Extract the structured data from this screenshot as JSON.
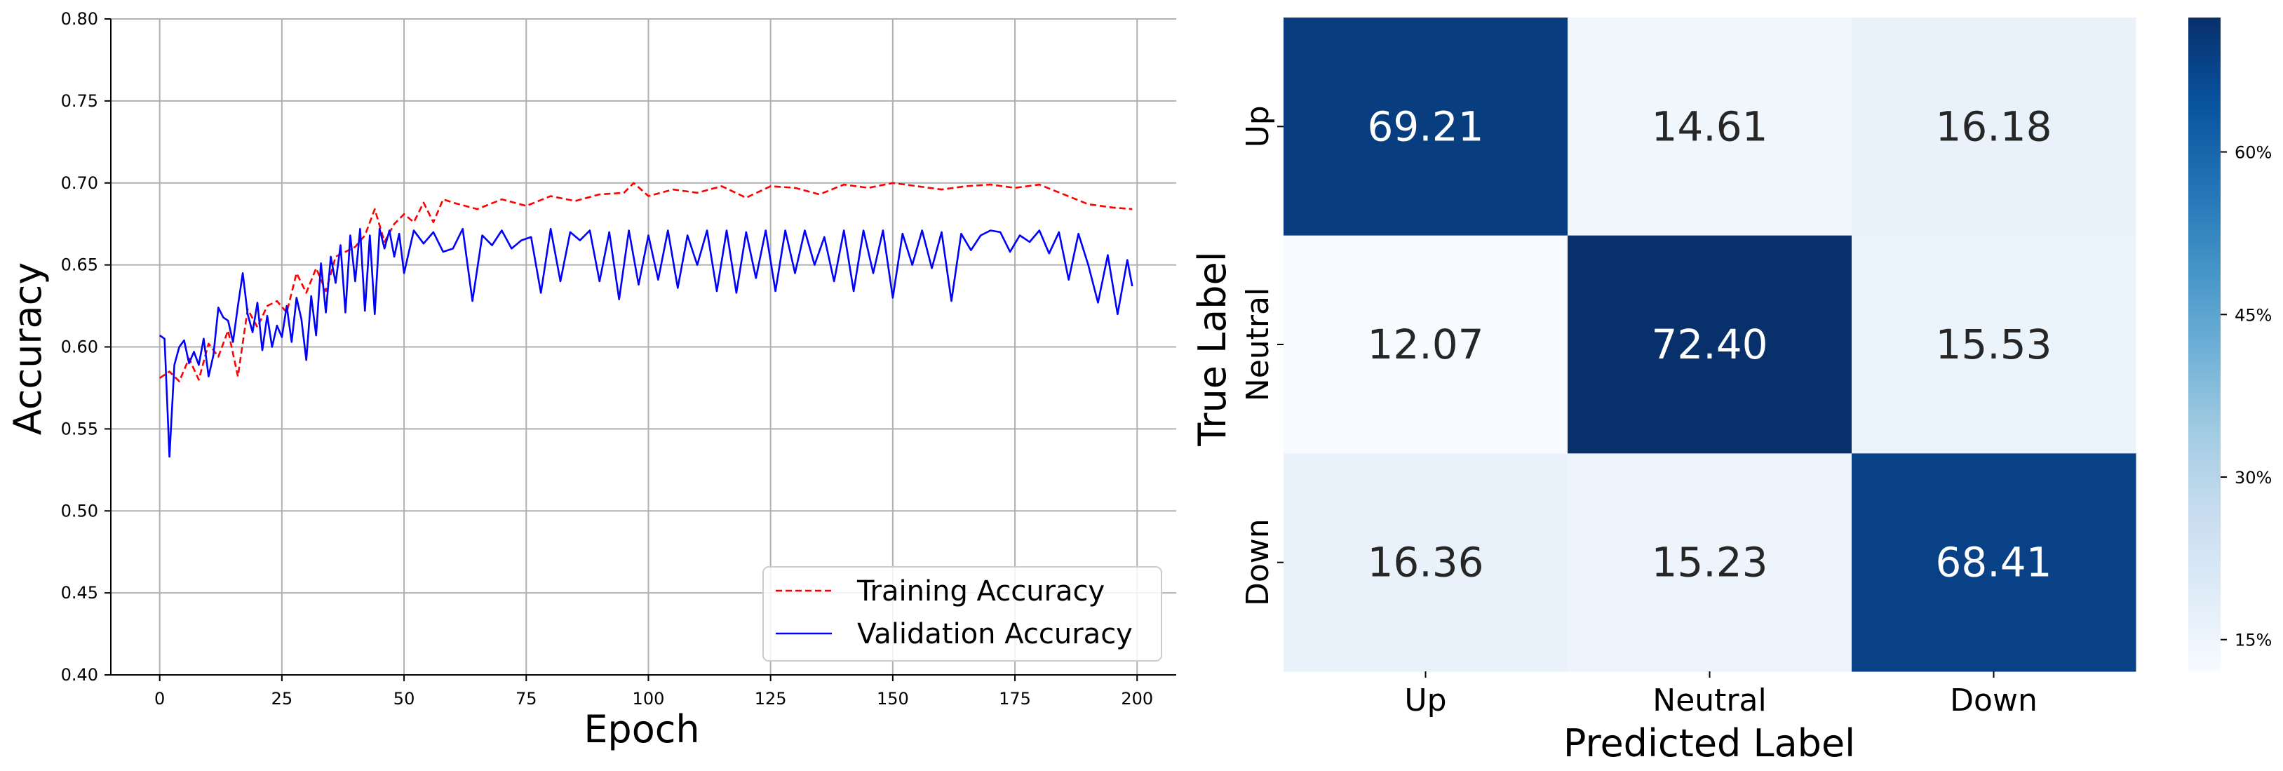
{
  "chart_data": [
    {
      "type": "line",
      "xlabel": "Epoch",
      "ylabel": "Accuracy",
      "xlim": [
        -10,
        208
      ],
      "ylim": [
        0.4,
        0.8
      ],
      "xticks": [
        0,
        25,
        50,
        75,
        100,
        125,
        150,
        175,
        200
      ],
      "yticks": [
        0.4,
        0.45,
        0.5,
        0.55,
        0.6,
        0.65,
        0.7,
        0.75,
        0.8
      ],
      "grid": true,
      "legend_position": "bottom-right",
      "series": [
        {
          "name": "Training Accuracy",
          "color": "#ff0000",
          "style": "dashed",
          "x": [
            0,
            2,
            4,
            6,
            8,
            10,
            12,
            14,
            16,
            18,
            20,
            22,
            24,
            26,
            28,
            30,
            32,
            34,
            36,
            38,
            40,
            42,
            44,
            46,
            48,
            50,
            52,
            54,
            56,
            58,
            60,
            65,
            70,
            75,
            80,
            85,
            90,
            95,
            97,
            100,
            105,
            110,
            115,
            120,
            125,
            130,
            135,
            140,
            145,
            150,
            155,
            160,
            165,
            170,
            175,
            180,
            185,
            190,
            195,
            199
          ],
          "y": [
            0.581,
            0.585,
            0.579,
            0.593,
            0.58,
            0.602,
            0.594,
            0.61,
            0.582,
            0.623,
            0.612,
            0.625,
            0.628,
            0.621,
            0.645,
            0.633,
            0.648,
            0.634,
            0.655,
            0.658,
            0.661,
            0.668,
            0.684,
            0.664,
            0.675,
            0.681,
            0.676,
            0.688,
            0.676,
            0.69,
            0.688,
            0.684,
            0.69,
            0.686,
            0.692,
            0.689,
            0.693,
            0.694,
            0.7,
            0.692,
            0.696,
            0.694,
            0.698,
            0.691,
            0.698,
            0.697,
            0.693,
            0.699,
            0.697,
            0.7,
            0.698,
            0.696,
            0.698,
            0.699,
            0.697,
            0.699,
            0.693,
            0.687,
            0.685,
            0.684
          ]
        },
        {
          "name": "Validation Accuracy",
          "color": "#0000ff",
          "style": "solid",
          "x": [
            0,
            1,
            2,
            3,
            4,
            5,
            6,
            7,
            8,
            9,
            10,
            11,
            12,
            13,
            14,
            15,
            16,
            17,
            18,
            19,
            20,
            21,
            22,
            23,
            24,
            25,
            26,
            27,
            28,
            29,
            30,
            31,
            32,
            33,
            34,
            35,
            36,
            37,
            38,
            39,
            40,
            41,
            42,
            43,
            44,
            45,
            46,
            47,
            48,
            49,
            50,
            52,
            54,
            56,
            58,
            60,
            62,
            64,
            66,
            68,
            70,
            72,
            74,
            76,
            78,
            80,
            82,
            84,
            86,
            88,
            90,
            92,
            94,
            96,
            98,
            100,
            102,
            104,
            106,
            108,
            110,
            112,
            114,
            116,
            118,
            120,
            122,
            124,
            126,
            128,
            130,
            132,
            134,
            136,
            138,
            140,
            142,
            144,
            146,
            148,
            150,
            152,
            154,
            156,
            158,
            160,
            162,
            164,
            166,
            168,
            170,
            172,
            174,
            176,
            178,
            180,
            182,
            184,
            186,
            188,
            190,
            192,
            194,
            196,
            198,
            199
          ],
          "y": [
            0.607,
            0.605,
            0.533,
            0.589,
            0.6,
            0.604,
            0.59,
            0.597,
            0.589,
            0.605,
            0.582,
            0.595,
            0.624,
            0.618,
            0.616,
            0.603,
            0.625,
            0.645,
            0.62,
            0.609,
            0.627,
            0.598,
            0.619,
            0.6,
            0.613,
            0.606,
            0.625,
            0.603,
            0.63,
            0.617,
            0.592,
            0.631,
            0.607,
            0.651,
            0.621,
            0.655,
            0.639,
            0.662,
            0.621,
            0.668,
            0.64,
            0.672,
            0.622,
            0.668,
            0.62,
            0.672,
            0.66,
            0.671,
            0.655,
            0.669,
            0.645,
            0.671,
            0.663,
            0.67,
            0.658,
            0.66,
            0.672,
            0.628,
            0.668,
            0.662,
            0.671,
            0.66,
            0.665,
            0.667,
            0.633,
            0.672,
            0.64,
            0.67,
            0.665,
            0.671,
            0.64,
            0.67,
            0.629,
            0.671,
            0.638,
            0.668,
            0.641,
            0.671,
            0.636,
            0.668,
            0.65,
            0.671,
            0.634,
            0.671,
            0.633,
            0.67,
            0.642,
            0.671,
            0.634,
            0.671,
            0.645,
            0.671,
            0.65,
            0.667,
            0.64,
            0.671,
            0.634,
            0.671,
            0.645,
            0.671,
            0.63,
            0.669,
            0.65,
            0.671,
            0.648,
            0.67,
            0.628,
            0.669,
            0.659,
            0.668,
            0.671,
            0.67,
            0.658,
            0.668,
            0.664,
            0.671,
            0.657,
            0.67,
            0.641,
            0.669,
            0.65,
            0.627,
            0.656,
            0.62,
            0.653,
            0.637
          ]
        }
      ]
    },
    {
      "type": "heatmap",
      "xlabel": "Predicted Label",
      "ylabel": "True Label",
      "x_categories": [
        "Up",
        "Neutral",
        "Down"
      ],
      "y_categories": [
        "Up",
        "Neutral",
        "Down"
      ],
      "values": [
        [
          69.21,
          14.61,
          16.18
        ],
        [
          12.07,
          72.4,
          15.53
        ],
        [
          16.36,
          15.23,
          68.41
        ]
      ],
      "colormap": "Blues",
      "color_range": [
        12.07,
        72.4
      ],
      "colorbar_ticks": [
        15,
        30,
        45,
        60
      ],
      "colorbar_tick_labels": [
        "15%",
        "30%",
        "45%",
        "60%"
      ]
    }
  ]
}
